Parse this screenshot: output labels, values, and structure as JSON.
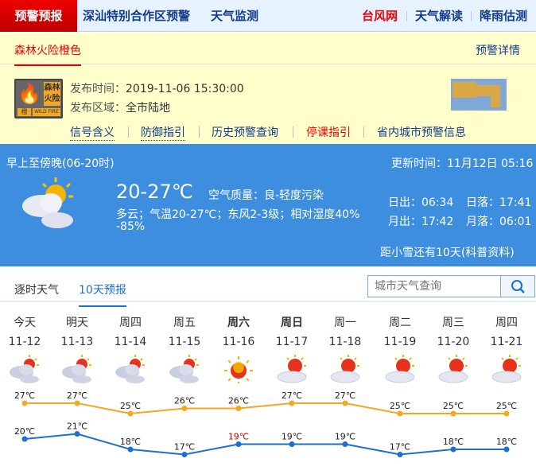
{
  "nav": {
    "brand": "预警预报",
    "items": [
      "深汕特别合作区预警",
      "天气监测"
    ],
    "right": [
      "台风网",
      "天气解读",
      "降雨估测"
    ]
  },
  "warning": {
    "tab": "森林火险橙色",
    "detail": "预警详情",
    "signal": {
      "icon": "fire-icon",
      "name": "森林火险",
      "level": "橙",
      "en": "WILD FIRE",
      "color": "#f5a623"
    },
    "time_label": "发布时间：",
    "time": "2019-11-06 15:30:00",
    "area_label": "发布区域：",
    "area": "全市陆地",
    "links": [
      {
        "label": "信号含义"
      },
      {
        "label": "防御指引"
      },
      {
        "label": "历史预警查询"
      },
      {
        "label": "停课指引"
      },
      {
        "label": "省内城市预警信息"
      }
    ]
  },
  "today": {
    "period": "早上至傍晚(06-20时)",
    "update_label": "更新时间：",
    "update": "11月12日 05:16",
    "temp": "20-27℃",
    "aqi_label": "空气质量：",
    "aqi": "良-轻度污染",
    "desc1": "多云；气温20-27℃；东风2-3级；相对湿度40%",
    "desc2": "-85%",
    "sunrise": "日出：06:34",
    "sunset": "日落：17:41",
    "moonrise": "月出：17:42",
    "moonset": "月落：06:01",
    "solar_term": "距小雪还有10天(科普资料)",
    "icon": "partly-cloudy-icon"
  },
  "tabs": [
    "逐时天气",
    "10天预报"
  ],
  "search": {
    "placeholder": "城市天气查询"
  },
  "forecast": [
    {
      "day": "今天",
      "date": "11-12",
      "icon": "partly-cloudy",
      "high": "27℃",
      "low": "20℃"
    },
    {
      "day": "明天",
      "date": "11-13",
      "icon": "partly-cloudy",
      "high": "27℃",
      "low": "21℃"
    },
    {
      "day": "周四",
      "date": "11-14",
      "icon": "partly-cloudy",
      "high": "25℃",
      "low": "18℃"
    },
    {
      "day": "周五",
      "date": "11-15",
      "icon": "partly-cloudy",
      "high": "26℃",
      "low": "17℃"
    },
    {
      "day": "周六",
      "date": "11-16",
      "icon": "sunny",
      "high": "26℃",
      "low": "19℃",
      "bold": true
    },
    {
      "day": "周日",
      "date": "11-17",
      "icon": "sunny-cloudy",
      "high": "27℃",
      "low": "19℃",
      "bold": true
    },
    {
      "day": "周一",
      "date": "11-18",
      "icon": "sunny-cloudy",
      "high": "27℃",
      "low": "19℃"
    },
    {
      "day": "周二",
      "date": "11-19",
      "icon": "sunny-cloudy",
      "high": "25℃",
      "low": "17℃"
    },
    {
      "day": "周三",
      "date": "11-20",
      "icon": "sunny-cloudy",
      "high": "25℃",
      "low": "18℃"
    },
    {
      "day": "周四",
      "date": "11-21",
      "icon": "sunny-cloudy",
      "high": "25℃",
      "low": "18℃"
    }
  ],
  "chart_data": {
    "type": "line",
    "categories": [
      "11-12",
      "11-13",
      "11-14",
      "11-15",
      "11-16",
      "11-17",
      "11-18",
      "11-19",
      "11-20",
      "11-21"
    ],
    "series": [
      {
        "values": [
          27,
          27,
          25,
          26,
          26,
          27,
          27,
          25,
          25,
          25
        ],
        "color": "#f5a623"
      },
      {
        "values": [
          20,
          21,
          18,
          17,
          19,
          19,
          19,
          17,
          18,
          18
        ],
        "color": "#1a6fd0"
      }
    ]
  },
  "colors": {
    "nav_bg": "#e6f2ff",
    "brand": "#cc0000",
    "warn_bg": "#ffffcc",
    "panel": "#3d8ede",
    "link": "#123b8a",
    "red": "#ee0000"
  }
}
